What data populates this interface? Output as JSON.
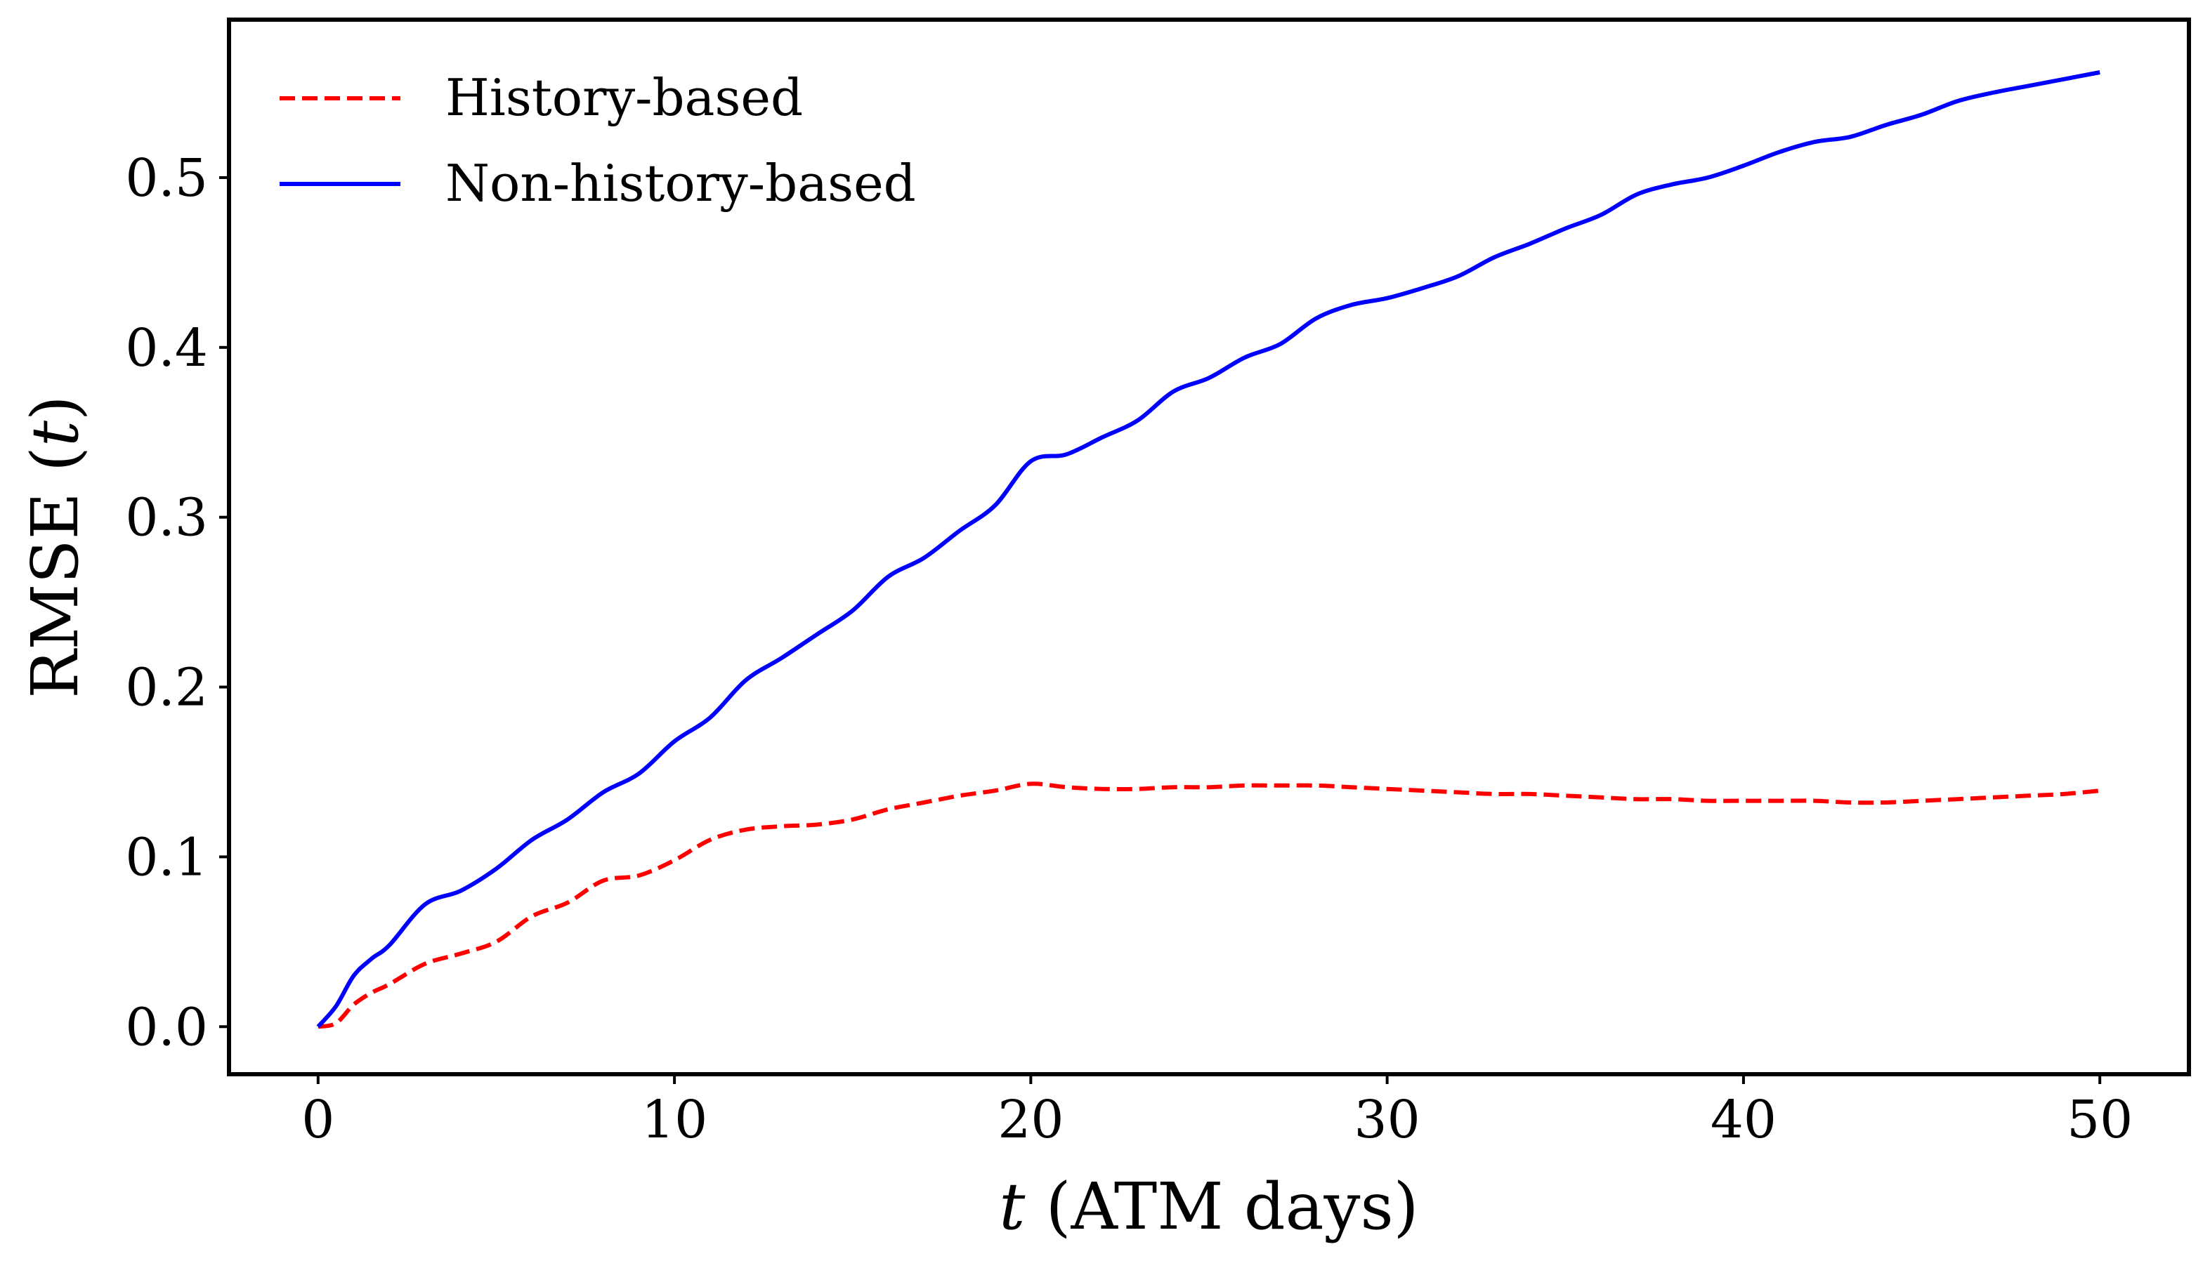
{
  "chart_data": {
    "type": "line",
    "title": "",
    "xlabel": {
      "var": "t",
      "rest": " (ATM days)"
    },
    "ylabel": {
      "prefix": "RMSE (",
      "var": "t",
      "suffix": ")"
    },
    "xlim": [
      -2.5,
      52.5
    ],
    "ylim": [
      -0.028,
      0.593
    ],
    "xticks": [
      0,
      10,
      20,
      30,
      40,
      50
    ],
    "xtick_labels": [
      "0",
      "10",
      "20",
      "30",
      "40",
      "50"
    ],
    "yticks": [
      0.0,
      0.1,
      0.2,
      0.3,
      0.4,
      0.5
    ],
    "ytick_labels": [
      "0.0",
      "0.1",
      "0.2",
      "0.3",
      "0.4",
      "0.5"
    ],
    "grid": false,
    "legend_position": "top-left",
    "series": [
      {
        "name": "History-based",
        "color": "#ff0000",
        "style": "dashed",
        "x": [
          0,
          0.5,
          1,
          1.5,
          2,
          3,
          4,
          5,
          6,
          7,
          8,
          9,
          10,
          11,
          12,
          13,
          14,
          15,
          16,
          17,
          18,
          19,
          20,
          21,
          22,
          23,
          24,
          25,
          26,
          27,
          28,
          29,
          30,
          31,
          32,
          33,
          34,
          35,
          36,
          37,
          38,
          39,
          40,
          41,
          42,
          43,
          44,
          45,
          46,
          47,
          48,
          49,
          50
        ],
        "values": [
          0.0,
          0.002,
          0.013,
          0.02,
          0.025,
          0.037,
          0.043,
          0.05,
          0.065,
          0.073,
          0.086,
          0.089,
          0.098,
          0.11,
          0.116,
          0.118,
          0.119,
          0.122,
          0.128,
          0.132,
          0.136,
          0.139,
          0.143,
          0.141,
          0.14,
          0.14,
          0.141,
          0.141,
          0.142,
          0.142,
          0.142,
          0.141,
          0.14,
          0.139,
          0.138,
          0.137,
          0.137,
          0.136,
          0.135,
          0.134,
          0.134,
          0.133,
          0.133,
          0.133,
          0.133,
          0.132,
          0.132,
          0.133,
          0.134,
          0.135,
          0.136,
          0.137,
          0.139
        ]
      },
      {
        "name": "Non-history-based",
        "color": "#0000ff",
        "style": "solid",
        "x": [
          0,
          0.5,
          1,
          1.5,
          2,
          3,
          4,
          5,
          6,
          7,
          8,
          9,
          10,
          11,
          12,
          13,
          14,
          15,
          16,
          17,
          18,
          19,
          20,
          21,
          22,
          23,
          24,
          25,
          26,
          27,
          28,
          29,
          30,
          31,
          32,
          33,
          34,
          35,
          36,
          37,
          38,
          39,
          40,
          41,
          42,
          43,
          44,
          45,
          46,
          47,
          48,
          49,
          50
        ],
        "values": [
          0.0,
          0.012,
          0.03,
          0.04,
          0.048,
          0.072,
          0.08,
          0.093,
          0.11,
          0.122,
          0.138,
          0.149,
          0.168,
          0.182,
          0.204,
          0.217,
          0.231,
          0.245,
          0.265,
          0.276,
          0.292,
          0.307,
          0.333,
          0.337,
          0.347,
          0.357,
          0.374,
          0.382,
          0.394,
          0.402,
          0.417,
          0.425,
          0.429,
          0.435,
          0.442,
          0.453,
          0.461,
          0.47,
          0.478,
          0.49,
          0.496,
          0.5,
          0.507,
          0.515,
          0.521,
          0.524,
          0.531,
          0.537,
          0.545,
          0.55,
          0.554,
          0.558,
          0.562
        ]
      }
    ]
  }
}
